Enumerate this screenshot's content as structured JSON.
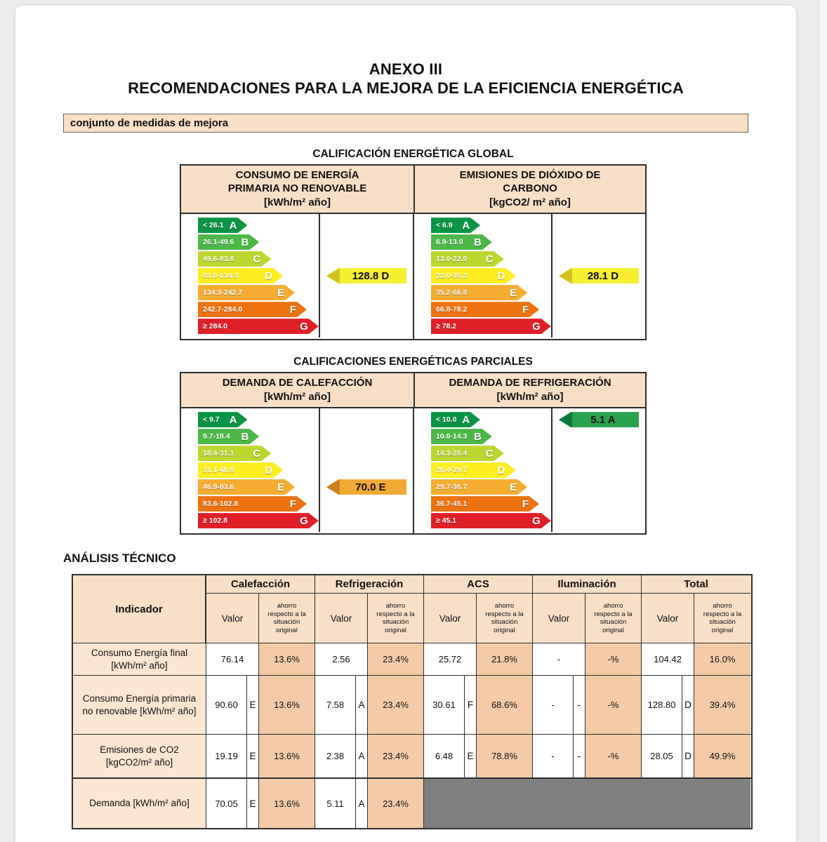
{
  "page": {
    "title_line1": "ANEXO III",
    "title_line2": "RECOMENDACIONES PARA LA MEJORA DE LA EFICIENCIA ENERGÉTICA",
    "measures_label": "conjunto de medidas de mejora",
    "analysis_heading": "ANÁLISIS TÉCNICO"
  },
  "global_rating": {
    "title": "CALIFICACIÓN ENERGÉTICA GLOBAL",
    "consumo": {
      "header": "CONSUMO DE ENERGÍA PRIMARIA NO RENOVABLE",
      "units": "[kWh/m² año]",
      "scale": [
        {
          "label": "A",
          "range": "< 26.1",
          "color": "#0b9444"
        },
        {
          "label": "B",
          "range": "26.1-49.6",
          "color": "#4db848"
        },
        {
          "label": "C",
          "range": "49.6-83.8",
          "color": "#bed630"
        },
        {
          "label": "D",
          "range": "83.8-134.3",
          "color": "#fdee21"
        },
        {
          "label": "E",
          "range": "134.3-242.7",
          "color": "#f5ad31"
        },
        {
          "label": "F",
          "range": "242.7-284.0",
          "color": "#ee7310"
        },
        {
          "label": "G",
          "range": "≥ 284.0",
          "color": "#e02027"
        }
      ],
      "value": {
        "text": "128.8 D",
        "row": 3,
        "color": "#f6ee31",
        "tip": "#cfc222"
      }
    },
    "emisiones": {
      "header": "EMISIONES DE DIÓXIDO DE CARBONO",
      "units": "[kgCO2/ m² año]",
      "scale": [
        {
          "label": "A",
          "range": "< 6.9",
          "color": "#0b9444"
        },
        {
          "label": "B",
          "range": "6.9-13.0",
          "color": "#4db848"
        },
        {
          "label": "C",
          "range": "13.0-22.0",
          "color": "#bed630"
        },
        {
          "label": "D",
          "range": "22.0-35.2",
          "color": "#fdee21"
        },
        {
          "label": "E",
          "range": "35.2-66.8",
          "color": "#f5ad31"
        },
        {
          "label": "F",
          "range": "66.8-78.2",
          "color": "#ee7310"
        },
        {
          "label": "G",
          "range": "≥ 78.2",
          "color": "#e02027"
        }
      ],
      "value": {
        "text": "28.1 D",
        "row": 3,
        "color": "#f6ee31",
        "tip": "#cfc222"
      }
    }
  },
  "partial_rating": {
    "title": "CALIFICACIONES ENERGÉTICAS PARCIALES",
    "calefaccion": {
      "header": "DEMANDA DE CALEFACCIÓN",
      "units": "[kWh/m² año]",
      "scale": [
        {
          "label": "A",
          "range": "< 9.7",
          "color": "#0b9444"
        },
        {
          "label": "B",
          "range": "9.7-18.4",
          "color": "#4db848"
        },
        {
          "label": "C",
          "range": "18.4-31.1",
          "color": "#bed630"
        },
        {
          "label": "D",
          "range": "31.1-46.9",
          "color": "#fdee21"
        },
        {
          "label": "E",
          "range": "46.9-83.6",
          "color": "#f5ad31"
        },
        {
          "label": "F",
          "range": "83.6-102.8",
          "color": "#ee7310"
        },
        {
          "label": "G",
          "range": "≥ 102.8",
          "color": "#e02027"
        }
      ],
      "value": {
        "text": "70.0 E",
        "row": 4,
        "color": "#f0a933",
        "tip": "#c9821c"
      }
    },
    "refrigeracion": {
      "header": "DEMANDA DE REFRIGERACIÓN",
      "units": "[kWh/m² año]",
      "scale": [
        {
          "label": "A",
          "range": "< 10.0",
          "color": "#0b9444"
        },
        {
          "label": "B",
          "range": "10.0-14.3",
          "color": "#4db848"
        },
        {
          "label": "C",
          "range": "14.3-20.4",
          "color": "#bed630"
        },
        {
          "label": "D",
          "range": "20.4-29.7",
          "color": "#fdee21"
        },
        {
          "label": "E",
          "range": "29.7-36.7",
          "color": "#f5ad31"
        },
        {
          "label": "F",
          "range": "36.7-45.1",
          "color": "#ee7310"
        },
        {
          "label": "G",
          "range": "≥ 45.1",
          "color": "#e02027"
        }
      ],
      "value": {
        "text": "5.1 A",
        "row": 0,
        "color": "#2aa24c",
        "tip": "#0b7a3a"
      }
    }
  },
  "analysis_table": {
    "indicator_header": "Indicador",
    "groups": [
      "Calefacción",
      "Refrigeración",
      "ACS",
      "Iluminación",
      "Total"
    ],
    "valor_label": "Valor",
    "ahorro_label": "ahorro respecto a la situación original",
    "rows": [
      {
        "indicator": "Consumo Energía final [kWh/m² año]",
        "cells": [
          {
            "valor": "76.14",
            "letter": null,
            "ahorro": "13.6%"
          },
          {
            "valor": "2.56",
            "letter": null,
            "ahorro": "23.4%"
          },
          {
            "valor": "25.72",
            "letter": null,
            "ahorro": "21.8%"
          },
          {
            "valor": "-",
            "letter": null,
            "ahorro": "-%"
          },
          {
            "valor": "104.42",
            "letter": null,
            "ahorro": "16.0%"
          }
        ]
      },
      {
        "indicator": "Consumo Energía primaria no renovable [kWh/m² año]",
        "cells": [
          {
            "valor": "90.60",
            "letter": "E",
            "ahorro": "13.6%"
          },
          {
            "valor": "7.58",
            "letter": "A",
            "ahorro": "23.4%"
          },
          {
            "valor": "30.61",
            "letter": "F",
            "ahorro": "68.6%"
          },
          {
            "valor": "-",
            "letter": "-",
            "ahorro": "-%"
          },
          {
            "valor": "128.80",
            "letter": "D",
            "ahorro": "39.4%"
          }
        ]
      },
      {
        "indicator": "Emisiones de CO2 [kgCO2/m² año]",
        "cells": [
          {
            "valor": "19.19",
            "letter": "E",
            "ahorro": "13.6%"
          },
          {
            "valor": "2.38",
            "letter": "A",
            "ahorro": "23.4%"
          },
          {
            "valor": "6.48",
            "letter": "E",
            "ahorro": "78.8%"
          },
          {
            "valor": "-",
            "letter": "-",
            "ahorro": "-%"
          },
          {
            "valor": "28.05",
            "letter": "D",
            "ahorro": "49.9%"
          }
        ]
      },
      {
        "indicator": "Demanda [kWh/m² año]",
        "cells": [
          {
            "valor": "70.05",
            "letter": "E",
            "ahorro": "13.6%"
          },
          {
            "valor": "5.11",
            "letter": "A",
            "ahorro": "23.4%"
          },
          {
            "blocked": true
          },
          {
            "blocked": true
          },
          {
            "blocked": true
          }
        ]
      }
    ]
  }
}
